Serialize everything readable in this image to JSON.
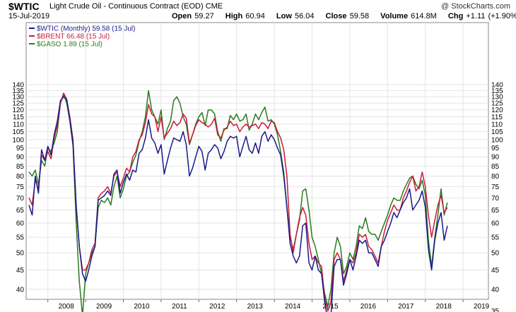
{
  "header": {
    "symbol": "$WTIC",
    "name": "Light Crude Oil - Continuous Contract (EOD) CME",
    "watermark": "@ StockCharts.com",
    "date": "15-Jul-2019",
    "open_label": "Open",
    "open": "59.27",
    "high_label": "High",
    "high": "60.94",
    "low_label": "Low",
    "low": "56.04",
    "close_label": "Close",
    "close": "59.58",
    "volume_label": "Volume",
    "volume": "614.8M",
    "chg_label": "Chg",
    "chg": "+1.11 (+1.90%)"
  },
  "colors": {
    "wtic": "#1a1a8c",
    "brent": "#cc1a3a",
    "gaso": "#2a7a1e",
    "grid": "#e4e4e4",
    "frame": "#888888"
  },
  "chart_data": {
    "type": "line",
    "x_start": "2007-07",
    "x_interval": "monthly",
    "x_tick_labels": [
      "2008",
      "2009",
      "2010",
      "2011",
      "2012",
      "2013",
      "2014",
      "2015",
      "2016",
      "2017",
      "2018",
      "2019"
    ],
    "y_scale": "log",
    "y_ticks_left": [
      40,
      45,
      50,
      55,
      60,
      65,
      70,
      75,
      80,
      85,
      90,
      95,
      100,
      105,
      110,
      115,
      120,
      125,
      130,
      135,
      140
    ],
    "y_ticks_right": [
      35,
      40,
      45,
      50,
      55,
      60,
      65,
      70,
      75,
      80,
      85,
      90,
      95,
      100,
      105,
      110,
      115,
      120,
      125,
      130,
      135,
      140
    ],
    "grid": true,
    "legend_position": "top-left",
    "series": [
      {
        "name": "$WTIC (Monthly) 59.58 (15 Jul)",
        "color_key": "wtic",
        "values": [
          67,
          63,
          80,
          72,
          94,
          88,
          96,
          91,
          103,
          112,
          127,
          130,
          128,
          113,
          98,
          67,
          52,
          44,
          42,
          45,
          49,
          52,
          69,
          70,
          71,
          73,
          71,
          81,
          83,
          72,
          77,
          81,
          78,
          83,
          82,
          92,
          94,
          101,
          113,
          101,
          98,
          92,
          97,
          81,
          88,
          95,
          101,
          100,
          99,
          105,
          97,
          80,
          84,
          90,
          96,
          93,
          83,
          92,
          94,
          97,
          95,
          89,
          93,
          99,
          102,
          101,
          102,
          90,
          96,
          102,
          94,
          92,
          98,
          92,
          102,
          105,
          99,
          103,
          100,
          95,
          91,
          80,
          66,
          53,
          49,
          47,
          49,
          59,
          60,
          47,
          45,
          49,
          45,
          44,
          37,
          33,
          34,
          46,
          48,
          48,
          41,
          44,
          48,
          45,
          49,
          54,
          53,
          54,
          50,
          50,
          48,
          46,
          52,
          54,
          57,
          60,
          64,
          62,
          65,
          68,
          70,
          74,
          65,
          67,
          69,
          73,
          66,
          51,
          45,
          54,
          60,
          64,
          54,
          59
        ]
      },
      {
        "name": "$BRENT 66.48 (15 Jul)",
        "color_key": "brent",
        "values": [
          70,
          67,
          78,
          74,
          91,
          88,
          93,
          89,
          101,
          109,
          125,
          133,
          128,
          115,
          100,
          66,
          52,
          45,
          45,
          47,
          51,
          53,
          70,
          72,
          73,
          75,
          72,
          80,
          82,
          75,
          79,
          84,
          82,
          90,
          93,
          100,
          103,
          111,
          124,
          117,
          115,
          105,
          115,
          101,
          104,
          107,
          112,
          109,
          111,
          117,
          114,
          98,
          103,
          109,
          113,
          111,
          110,
          108,
          110,
          114,
          103,
          101,
          106,
          108,
          112,
          109,
          110,
          105,
          108,
          110,
          108,
          109,
          110,
          107,
          111,
          110,
          107,
          112,
          111,
          105,
          101,
          94,
          80,
          56,
          50,
          56,
          62,
          66,
          63,
          53,
          48,
          49,
          47,
          46,
          38,
          35,
          37,
          48,
          50,
          48,
          42,
          45,
          48,
          47,
          50,
          56,
          55,
          56,
          52,
          51,
          49,
          47,
          52,
          57,
          61,
          64,
          67,
          65,
          65,
          70,
          73,
          77,
          80,
          73,
          75,
          82,
          75,
          63,
          55,
          61,
          67,
          71,
          64,
          66
        ]
      },
      {
        "name": "$GASO 1.89 (15 Jul)",
        "color_key": "gaso",
        "values": [
          82,
          80,
          83,
          76,
          88,
          85,
          95,
          93,
          98,
          105,
          125,
          132,
          125,
          112,
          96,
          60,
          42,
          34,
          44,
          47,
          50,
          52,
          66,
          69,
          68,
          70,
          67,
          75,
          80,
          70,
          74,
          80,
          82,
          87,
          91,
          99,
          105,
          115,
          135,
          120,
          115,
          110,
          120,
          100,
          107,
          112,
          127,
          130,
          125,
          115,
          110,
          97,
          103,
          110,
          115,
          118,
          109,
          120,
          120,
          117,
          105,
          99,
          107,
          107,
          116,
          113,
          117,
          112,
          113,
          117,
          106,
          110,
          117,
          113,
          118,
          122,
          112,
          113,
          110,
          103,
          93,
          82,
          66,
          55,
          51,
          56,
          61,
          73,
          74,
          65,
          55,
          52,
          48,
          44,
          39,
          36,
          40,
          50,
          55,
          52,
          44,
          46,
          50,
          48,
          52,
          59,
          58,
          62,
          57,
          56,
          56,
          54,
          57,
          60,
          63,
          67,
          70,
          69,
          69,
          73,
          76,
          79,
          80,
          76,
          74,
          78,
          71,
          54,
          46,
          55,
          63,
          74,
          63,
          68
        ]
      }
    ]
  }
}
